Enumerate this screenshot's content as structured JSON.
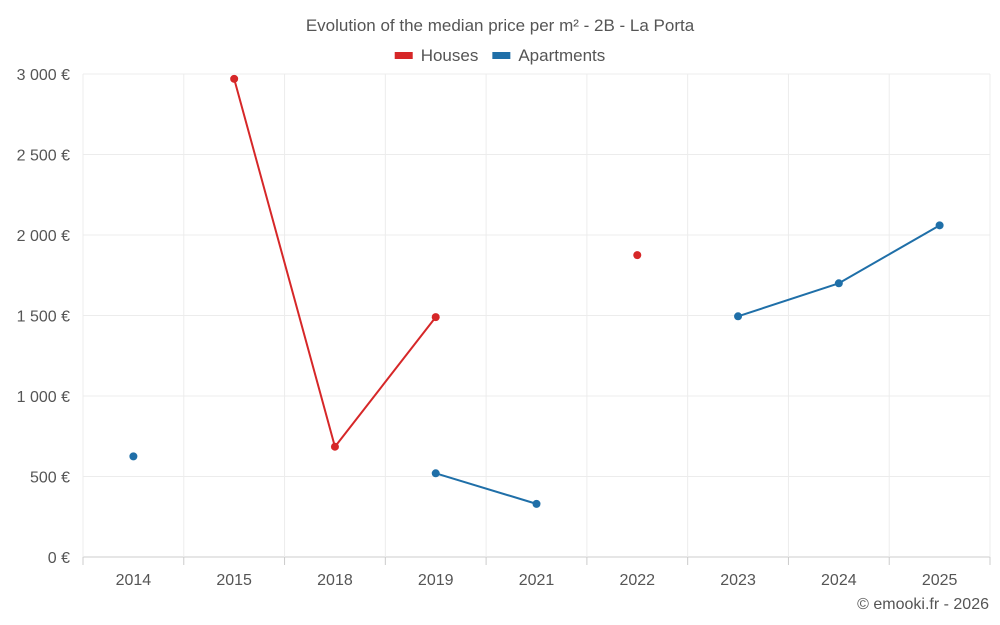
{
  "chart_data": {
    "type": "line",
    "title": "Evolution of the median price per m² - 2B - La Porta",
    "categories": [
      "2014",
      "2015",
      "2018",
      "2019",
      "2021",
      "2022",
      "2023",
      "2024",
      "2025"
    ],
    "y_ticks": [
      "0 €",
      "500 €",
      "1 000 €",
      "1 500 €",
      "2 000 €",
      "2 500 €",
      "3 000 €"
    ],
    "ylim": [
      0,
      3000
    ],
    "xlabel": "",
    "ylabel": "",
    "grid": true,
    "legend_position": "top-center",
    "series": [
      {
        "name": "Houses",
        "color": "#d62728",
        "values": [
          null,
          2970,
          685,
          1490,
          null,
          1875,
          null,
          null,
          null
        ]
      },
      {
        "name": "Apartments",
        "color": "#1f6fa8",
        "values": [
          625,
          null,
          null,
          520,
          330,
          null,
          1495,
          1700,
          2060
        ]
      }
    ],
    "credit": "© emooki.fr - 2026"
  }
}
